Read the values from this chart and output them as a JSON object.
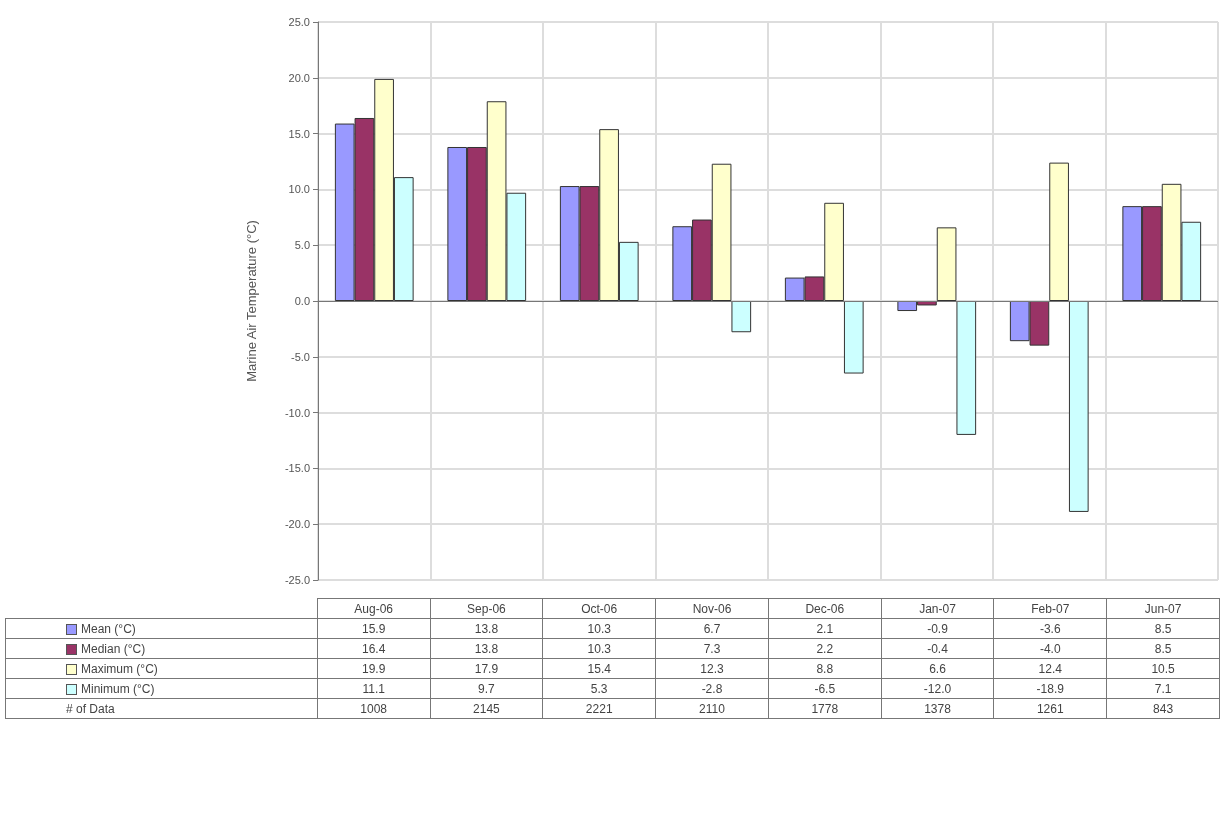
{
  "chart_data": {
    "type": "bar",
    "ylabel": "Marine Air Temperature (°C)",
    "categories": [
      "Aug-06",
      "Sep-06",
      "Oct-06",
      "Nov-06",
      "Dec-06",
      "Jan-07",
      "Feb-07",
      "Jun-07"
    ],
    "series": [
      {
        "name": "Mean (°C)",
        "color": "#9999ff",
        "values": [
          15.9,
          13.8,
          10.3,
          6.7,
          2.1,
          -0.9,
          -3.6,
          8.5
        ],
        "value_labels": [
          "15.9",
          "13.8",
          "10.3",
          "6.7",
          "2.1",
          "-0.9",
          "-3.6",
          "8.5"
        ]
      },
      {
        "name": "Median (°C)",
        "color": "#993366",
        "values": [
          16.4,
          13.8,
          10.3,
          7.3,
          2.2,
          -0.4,
          -4.0,
          8.5
        ],
        "value_labels": [
          "16.4",
          "13.8",
          "10.3",
          "7.3",
          "2.2",
          "-0.4",
          "-4.0",
          "8.5"
        ]
      },
      {
        "name": "Maximum (°C)",
        "color": "#ffffcc",
        "values": [
          19.9,
          17.9,
          15.4,
          12.3,
          8.8,
          6.6,
          12.4,
          10.5
        ],
        "value_labels": [
          "19.9",
          "17.9",
          "15.4",
          "12.3",
          "8.8",
          "6.6",
          "12.4",
          "10.5"
        ]
      },
      {
        "name": "Minimum (°C)",
        "color": "#ccffff",
        "values": [
          11.1,
          9.7,
          5.3,
          -2.8,
          -6.5,
          -12.0,
          -18.9,
          7.1
        ],
        "value_labels": [
          "11.1",
          "9.7",
          "5.3",
          "-2.8",
          "-6.5",
          "-12.0",
          "-18.9",
          "7.1"
        ]
      }
    ],
    "annotations": [
      "# of Data",
      "1008",
      "2145",
      "2221",
      "2110",
      "1778",
      "1378",
      "1261",
      "843"
    ],
    "ylim": [
      -25,
      25
    ],
    "yticks": [
      {
        "value": -25,
        "label": "-25.0"
      },
      {
        "value": -20,
        "label": "-20.0"
      },
      {
        "value": -15,
        "label": "-15.0"
      },
      {
        "value": -10,
        "label": "-10.0"
      },
      {
        "value": -5,
        "label": "-5.0"
      },
      {
        "value": 0,
        "label": "0.0"
      },
      {
        "value": 5,
        "label": "5.0"
      },
      {
        "value": 10,
        "label": "10.0"
      },
      {
        "value": 15,
        "label": "15.0"
      },
      {
        "value": 20,
        "label": "20.0"
      },
      {
        "value": 25,
        "label": "25.0"
      }
    ],
    "grid": true,
    "legend": "bottom left"
  }
}
